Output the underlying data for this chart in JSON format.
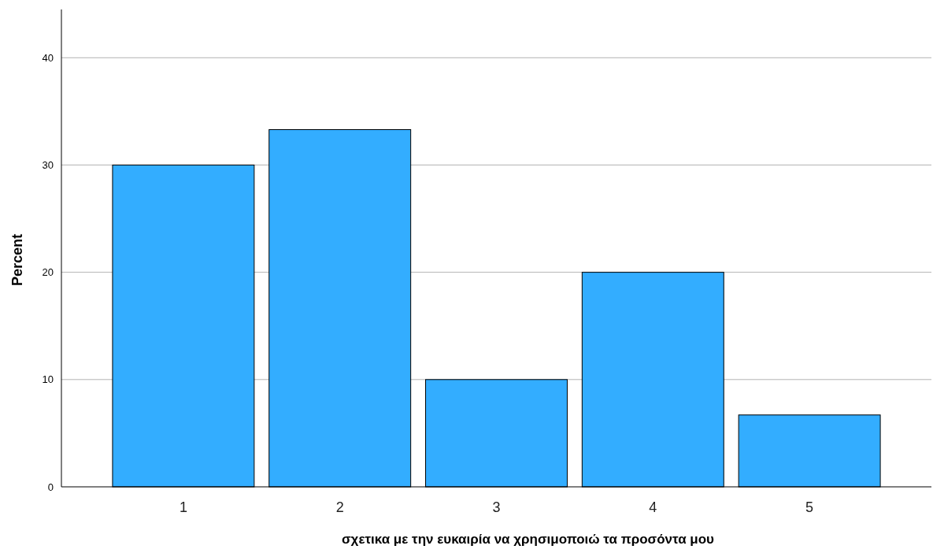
{
  "chart_data": {
    "type": "bar",
    "xlabel": "σχετικα με την ευκαιρία να χρησιμοποιώ τα προσόντα μου",
    "ylabel": "Percent",
    "categories": [
      "1",
      "2",
      "3",
      "4",
      "5"
    ],
    "values": [
      30,
      33.3,
      10,
      20,
      6.7
    ],
    "color": "#33adff",
    "ylim": [
      0,
      44.5
    ],
    "yticks": [
      0,
      10,
      20,
      30,
      40
    ],
    "grid": "y"
  }
}
